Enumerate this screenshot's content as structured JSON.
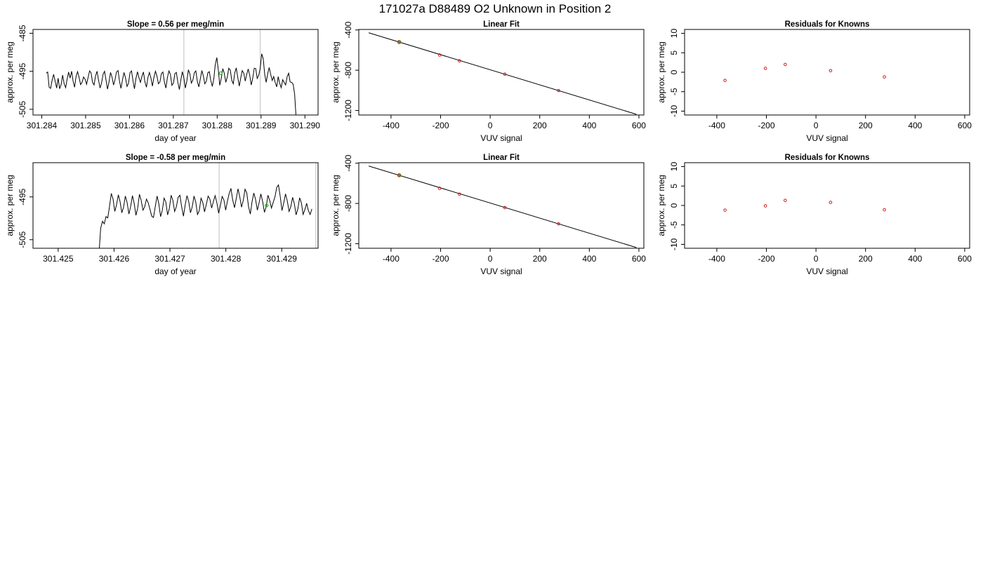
{
  "figure": {
    "title": "171027a     D88489   O2 Unknown in Position  2"
  },
  "colors": {
    "line": "#000000",
    "vertical_marker": "#c8c8c8",
    "known_point": "#d21e1e",
    "unknown_point": "#22bb22"
  },
  "chart_data": [
    {
      "type": "line",
      "title": "Slope =  0.56  per meg/min",
      "xlabel": "day of year",
      "ylabel": "approx. per meg",
      "xlim": [
        301.2838,
        301.2903
      ],
      "ylim": [
        -506.5,
        -484.0
      ],
      "xticks": [
        301.284,
        301.285,
        301.286,
        301.287,
        301.288,
        301.289,
        301.29
      ],
      "xtick_labels": [
        "301.284",
        "301.285",
        "301.286",
        "301.287",
        "301.288",
        "301.289",
        "301.290"
      ],
      "yticks": [
        -505,
        -495,
        -485
      ],
      "ytick_labels": [
        "-505",
        "-495",
        "-485"
      ],
      "vlines": [
        301.28724,
        301.28898
      ],
      "grid": false,
      "series": [
        {
          "x_start": 301.2841,
          "x_end": 301.2898,
          "values": [
            -495.5,
            -495.2,
            -499.2,
            -499.5,
            -497.3,
            -495.8,
            -497.6,
            -499.4,
            -496.8,
            -499.6,
            -498.5,
            -496.0,
            -498.2,
            -499.3,
            -497.1,
            -495.2,
            -496.8,
            -495.0,
            -497.6,
            -499.2,
            -496.3,
            -495.1,
            -496.6,
            -498.5,
            -497.9,
            -496.5,
            -497.1,
            -498.4,
            -496.7,
            -494.9,
            -495.4,
            -497.9,
            -498.6,
            -496.2,
            -495.0,
            -497.4,
            -499.4,
            -498.1,
            -495.8,
            -495.0,
            -497.3,
            -499.7,
            -497.8,
            -495.3,
            -496.5,
            -498.6,
            -497.2,
            -495.2,
            -494.8,
            -497.6,
            -499.5,
            -497.2,
            -495.3,
            -496.7,
            -499.0,
            -498.2,
            -495.4,
            -494.9,
            -497.5,
            -499.6,
            -496.8,
            -495.1,
            -496.7,
            -497.9,
            -496.3,
            -495.2,
            -497.8,
            -499.2,
            -496.6,
            -495.3,
            -496.8,
            -498.9,
            -496.6,
            -495.0,
            -496.2,
            -498.3,
            -497.8,
            -495.6,
            -495.2,
            -497.9,
            -499.4,
            -496.7,
            -494.9,
            -495.8,
            -498.7,
            -498.1,
            -495.6,
            -495.3,
            -497.9,
            -499.8,
            -497.2,
            -495.1,
            -496.8,
            -499.4,
            -497.6,
            -494.6,
            -495.7,
            -498.1,
            -497.3,
            -495.4,
            -494.9,
            -497.7,
            -499.1,
            -497.0,
            -494.8,
            -496.2,
            -498.3,
            -497.6,
            -495.4,
            -495.1,
            -497.4,
            -499.0,
            -497.0,
            -493.2,
            -491.4,
            -494.6,
            -498.7,
            -496.8,
            -494.3,
            -495.5,
            -497.9,
            -496.5,
            -494.2,
            -494.7,
            -497.4,
            -498.3,
            -495.4,
            -494.1,
            -496.6,
            -498.9,
            -496.7,
            -494.8,
            -495.5,
            -497.6,
            -495.8,
            -494.4,
            -496.1,
            -498.6,
            -496.9,
            -494.2,
            -494.3,
            -496.9,
            -496.0,
            -494.2,
            -490.4,
            -491.7,
            -495.8,
            -497.9,
            -495.6,
            -494.0,
            -495.8,
            -497.4,
            -496.4,
            -497.9,
            -499.1,
            -496.4,
            -498.1,
            -499.3,
            -497.2,
            -497.9,
            -498.6,
            -496.4,
            -495.5,
            -497.8,
            -497.9,
            -498.4,
            -501.0,
            -507.5
          ]
        }
      ],
      "points": [
        {
          "x": 301.28808,
          "y": -495.5,
          "role": "unknown"
        }
      ]
    },
    {
      "type": "scatter",
      "title": "Linear Fit",
      "xlabel": "VUV signal",
      "ylabel": "approx. per meg",
      "xlim": [
        -530,
        620
      ],
      "ylim": [
        -1245,
        -395
      ],
      "xticks": [
        -400,
        -200,
        0,
        200,
        400,
        600
      ],
      "xtick_labels": [
        "-400",
        "-200",
        "0",
        "200",
        "400",
        "600"
      ],
      "yticks": [
        -1200,
        -800,
        -400
      ],
      "ytick_labels": [
        "-1200",
        "-800",
        "-400"
      ],
      "fit_line": {
        "x": [
          -490,
          590
        ],
        "y": [
          -428,
          -1238
        ]
      },
      "knowns": {
        "x": [
          -367,
          -204,
          -124,
          59,
          276
        ],
        "y": [
          -520,
          -649,
          -707,
          -839,
          -1002
        ]
      },
      "unknown": {
        "x": [
          -367
        ],
        "y": [
          -520
        ]
      }
    },
    {
      "type": "scatter",
      "title": "Residuals for Knowns",
      "xlabel": "VUV signal",
      "ylabel": "approx. per meg",
      "xlim": [
        -530,
        620
      ],
      "ylim": [
        -11,
        11
      ],
      "xticks": [
        -400,
        -200,
        0,
        200,
        400,
        600
      ],
      "xtick_labels": [
        "-400",
        "-200",
        "0",
        "200",
        "400",
        "600"
      ],
      "yticks": [
        -10,
        -5,
        0,
        5,
        10
      ],
      "ytick_labels": [
        "-10",
        "-5",
        "0",
        "5",
        "10"
      ],
      "points": {
        "x": [
          -367,
          -204,
          -124,
          59,
          276
        ],
        "y": [
          -2.1,
          1.0,
          2.0,
          0.4,
          -1.2
        ]
      }
    },
    {
      "type": "line",
      "title": "Slope =  -0.58  per meg/min",
      "xlabel": "day of year",
      "ylabel": "approx. per meg",
      "xlim": [
        301.42455,
        301.42965
      ],
      "ylim": [
        -507.0,
        -487.0
      ],
      "xticks": [
        301.425,
        301.426,
        301.427,
        301.428,
        301.429
      ],
      "xtick_labels": [
        "301.425",
        "301.426",
        "301.427",
        "301.428",
        "301.429"
      ],
      "yticks": [
        -505,
        -495
      ],
      "ytick_labels": [
        "-505",
        "-495"
      ],
      "vlines": [
        301.42788,
        301.42961
      ],
      "grid": false,
      "series": [
        {
          "x_start": 301.42573,
          "x_end": 301.42954,
          "values": [
            -508.5,
            -502.3,
            -500.7,
            -501.3,
            -499.6,
            -499.9,
            -497.2,
            -494.2,
            -495.5,
            -498.4,
            -496.8,
            -494.5,
            -496.1,
            -498.7,
            -497.4,
            -494.8,
            -496.3,
            -499.0,
            -497.2,
            -494.7,
            -496.5,
            -499.3,
            -497.6,
            -494.4,
            -495.8,
            -498.1,
            -497.3,
            -495.5,
            -496.4,
            -497.9,
            -499.5,
            -499.8,
            -497.2,
            -494.8,
            -496.6,
            -499.6,
            -498.1,
            -495.3,
            -496.2,
            -499.2,
            -497.7,
            -494.6,
            -495.8,
            -498.4,
            -497.3,
            -495.1,
            -494.6,
            -497.4,
            -499.5,
            -496.8,
            -494.7,
            -496.1,
            -498.7,
            -497.3,
            -494.8,
            -496.2,
            -499.1,
            -498.2,
            -495.3,
            -496.3,
            -498.5,
            -496.8,
            -494.8,
            -495.5,
            -497.6,
            -496.1,
            -494.7,
            -496.4,
            -498.8,
            -497.0,
            -494.9,
            -495.7,
            -498.1,
            -496.0,
            -494.2,
            -493.0,
            -495.7,
            -497.5,
            -495.4,
            -493.1,
            -495.0,
            -497.4,
            -495.8,
            -493.2,
            -494.1,
            -497.3,
            -499.0,
            -496.1,
            -494.1,
            -495.6,
            -498.1,
            -496.4,
            -494.3,
            -496.1,
            -498.6,
            -497.3,
            -494.6,
            -495.8,
            -497.6,
            -496.3,
            -495.0,
            -492.8,
            -492.2,
            -494.9,
            -498.2,
            -496.4,
            -494.3,
            -495.9,
            -498.4,
            -497.3,
            -495.1,
            -496.6,
            -499.2,
            -497.8,
            -495.2,
            -496.4,
            -499.1,
            -498.0,
            -496.5,
            -498.2,
            -499.1,
            -497.8
          ]
        }
      ],
      "points": [
        {
          "x": 301.42873,
          "y": -497.0,
          "role": "unknown"
        }
      ]
    },
    {
      "type": "scatter",
      "title": "Linear Fit",
      "xlabel": "VUV signal",
      "ylabel": "approx. per meg",
      "xlim": [
        -530,
        620
      ],
      "ylim": [
        -1245,
        -395
      ],
      "xticks": [
        -400,
        -200,
        0,
        200,
        400,
        600
      ],
      "xtick_labels": [
        "-400",
        "-200",
        "0",
        "200",
        "400",
        "600"
      ],
      "yticks": [
        -1200,
        -800,
        -400
      ],
      "ytick_labels": [
        "-1200",
        "-800",
        "-400"
      ],
      "fit_line": {
        "x": [
          -490,
          590
        ],
        "y": [
          -428,
          -1238
        ]
      },
      "knowns": {
        "x": [
          -367,
          -204,
          -124,
          59,
          276
        ],
        "y": [
          -520,
          -650,
          -708,
          -841,
          -1003
        ]
      },
      "unknown": {
        "x": [
          -367
        ],
        "y": [
          -520
        ]
      }
    },
    {
      "type": "scatter",
      "title": "Residuals for Knowns",
      "xlabel": "VUV signal",
      "ylabel": "approx. per meg",
      "xlim": [
        -530,
        620
      ],
      "ylim": [
        -11,
        11
      ],
      "xticks": [
        -400,
        -200,
        0,
        200,
        400,
        600
      ],
      "xtick_labels": [
        "-400",
        "-200",
        "0",
        "200",
        "400",
        "600"
      ],
      "yticks": [
        -10,
        -5,
        0,
        5,
        10
      ],
      "ytick_labels": [
        "-10",
        "-5",
        "0",
        "5",
        "10"
      ],
      "points": {
        "x": [
          -367,
          -204,
          -124,
          59,
          276
        ],
        "y": [
          -1.2,
          -0.1,
          1.3,
          0.8,
          -1.1
        ]
      }
    }
  ]
}
